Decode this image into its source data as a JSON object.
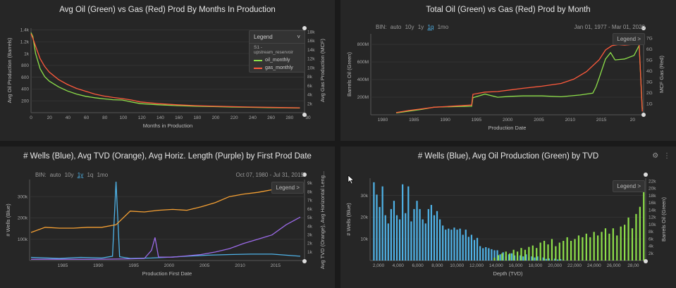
{
  "panels": [
    {
      "id": "p1",
      "title": "Avg Oil (Green) vs Gas (Red) Prod By Months In Production",
      "legend": {
        "header": "Legend",
        "chevron": "˅",
        "group": "S1 - upstream_reservoir",
        "items": [
          {
            "label": "oil_monthly",
            "color": "#8ee04a"
          },
          {
            "label": "gas_monthly",
            "color": "#ff5a3c"
          }
        ]
      }
    },
    {
      "id": "p2",
      "title": "Total Oil (Green) vs Gas (Red) Prod by Month",
      "bin": {
        "label": "BIN:",
        "options": [
          "auto",
          "10y",
          "1y",
          "1q",
          "1mo"
        ],
        "active": "1q"
      },
      "range": "Jan 01, 1977 - Mar 01, 2020",
      "legend_button": "Legend >"
    },
    {
      "id": "p3",
      "title": "# Wells (Blue), Avg TVD (Orange), Avg Horiz. Length (Purple) by First Prod Date",
      "bin": {
        "label": "BIN:",
        "options": [
          "auto",
          "10y",
          "1y",
          "1q",
          "1mo"
        ],
        "active": "1y"
      },
      "range": "Oct 07, 1980 - Jul 31, 2019",
      "legend_button": "Legend >"
    },
    {
      "id": "p4",
      "title": "# Wells (Blue), Avg Oil Production (Green) by TVD",
      "legend_button": "Legend >",
      "icons": {
        "settings": "gear-icon",
        "menu": "kebab-menu-icon"
      }
    }
  ],
  "chart_data": [
    {
      "type": "line",
      "title": "Avg Oil (Green) vs Gas (Red) Prod By Months In Production",
      "xlabel": "Months in Production",
      "ylabel": "Avg Oil Production (Barrels)",
      "y2label": "Avg Gas Production (MCF)",
      "xlim": [
        0,
        300
      ],
      "ylim": [
        0,
        1500
      ],
      "y2lim": [
        0,
        18000
      ],
      "xticks": [
        "0",
        "20",
        "40",
        "60",
        "80",
        "100",
        "120",
        "140",
        "160",
        "180",
        "200",
        "220",
        "240",
        "260",
        "280",
        "30"
      ],
      "yticks": [
        "200",
        "400",
        "600",
        "800",
        "1k",
        "1.2k",
        "1.4k"
      ],
      "y2ticks": [
        "2k",
        "4k",
        "6k",
        "8k",
        "10k",
        "12k",
        "14k",
        "16k",
        "18k"
      ],
      "grid": true,
      "legend_position": "top-right",
      "series": [
        {
          "name": "oil_monthly",
          "axis": "left",
          "color": "#8ee04a",
          "x": [
            0,
            2,
            5,
            10,
            15,
            20,
            30,
            40,
            50,
            60,
            70,
            80,
            90,
            100,
            110,
            120,
            140,
            160,
            180,
            200,
            220,
            240,
            260,
            280,
            295
          ],
          "y": [
            1420,
            1350,
            1050,
            780,
            640,
            560,
            460,
            385,
            330,
            290,
            265,
            245,
            230,
            225,
            190,
            160,
            140,
            125,
            115,
            108,
            100,
            95,
            90,
            86,
            82
          ]
        },
        {
          "name": "gas_monthly",
          "axis": "left",
          "color": "#ff5a3c",
          "x": [
            0,
            2,
            5,
            10,
            15,
            20,
            30,
            40,
            50,
            60,
            70,
            80,
            90,
            100,
            110,
            120,
            140,
            160,
            180,
            200,
            220,
            240,
            260,
            280,
            295
          ],
          "y": [
            1400,
            1320,
            1180,
            960,
            820,
            720,
            590,
            500,
            430,
            380,
            330,
            295,
            270,
            250,
            225,
            190,
            160,
            140,
            125,
            115,
            108,
            100,
            95,
            90,
            86
          ]
        }
      ]
    },
    {
      "type": "line",
      "title": "Total Oil (Green) vs Gas (Red) Prod by Month",
      "xlabel": "Production Date",
      "ylabel": "Barrels Oil (Green)",
      "y2label": "MCF Gas (Red)",
      "xlim": [
        1977,
        2020
      ],
      "ylim": [
        0,
        900
      ],
      "y2lim": [
        0,
        7.5
      ],
      "xticks": [
        "1980",
        "1985",
        "1990",
        "1995",
        "2000",
        "2005",
        "2010",
        "2015",
        "20"
      ],
      "yticks": [
        "200M",
        "400M",
        "600M",
        "800M"
      ],
      "y2ticks": [
        "1G",
        "2G",
        "3G",
        "4G",
        "5G",
        "6G",
        "7G"
      ],
      "grid": true,
      "series": [
        {
          "name": "oil",
          "axis": "left",
          "color": "#8ee04a",
          "x": [
            1981,
            1983,
            1985,
            1987,
            1990,
            1992.9,
            1993.1,
            1995,
            1997,
            1999,
            2001,
            2004,
            2007,
            2010,
            2012,
            2012.5,
            2013,
            2014,
            2014.8,
            2015.5,
            2017,
            2018.5,
            2019.3,
            2019.8
          ],
          "y": [
            20,
            40,
            60,
            85,
            90,
            95,
            190,
            230,
            195,
            205,
            210,
            210,
            200,
            220,
            240,
            310,
            410,
            620,
            690,
            610,
            620,
            660,
            770,
            60
          ]
        },
        {
          "name": "gas",
          "axis": "right",
          "color": "#ff5a3c",
          "x": [
            1981,
            1983,
            1985,
            1987,
            1990,
            1992.9,
            1993.1,
            1995,
            1997,
            1999,
            2001,
            2004,
            2007,
            2009,
            2011,
            2013,
            2014,
            2015,
            2016,
            2017,
            2018,
            2019.3,
            2019.8
          ],
          "y": [
            0.2,
            0.4,
            0.55,
            0.7,
            0.8,
            0.9,
            1.9,
            2.1,
            2.15,
            2.3,
            2.45,
            2.65,
            2.9,
            3.3,
            4.0,
            5.1,
            6.0,
            6.4,
            6.5,
            6.45,
            6.5,
            6.6,
            0.3
          ]
        }
      ]
    },
    {
      "type": "line",
      "title": "# Wells (Blue), Avg TVD (Orange), Avg Horiz. Length (Purple) by First Prod Date",
      "xlabel": "Production First Date",
      "ylabel": "# Wells (Blue)",
      "y2label": "Avg TVD (Orange), Avg Horizontal Leng...",
      "xlim": [
        1980.8,
        2019.6
      ],
      "ylim": [
        0,
        380
      ],
      "y2lim": [
        0,
        9500
      ],
      "xticks": [
        "1985",
        "1990",
        "1995",
        "2000",
        "2005",
        "2010",
        "2015"
      ],
      "yticks": [
        "100k",
        "200k",
        "300k"
      ],
      "y2ticks": [
        "1k",
        "2k",
        "3k",
        "4k",
        "5k",
        "6k",
        "7k",
        "8k",
        "9k"
      ],
      "grid": true,
      "series": [
        {
          "name": "wells",
          "axis": "left",
          "color": "#4fb3e8",
          "x": [
            1981,
            1985,
            1988,
            1991,
            1992.5,
            1993,
            1993.5,
            1995,
            1998,
            2000,
            2003,
            2006,
            2009,
            2012,
            2015,
            2017,
            2019
          ],
          "y": [
            15,
            10,
            15,
            12,
            20,
            370,
            18,
            10,
            12,
            15,
            20,
            25,
            28,
            30,
            30,
            25,
            20
          ]
        },
        {
          "name": "tvd",
          "axis": "right",
          "color": "#f5a033",
          "x": [
            1981,
            1983,
            1985,
            1987,
            1989,
            1991,
            1993,
            1995,
            1997,
            1999,
            2001,
            2003,
            2005,
            2007,
            2009,
            2011,
            2013,
            2015,
            2017,
            2019
          ],
          "y": [
            3300,
            3900,
            3800,
            3800,
            3900,
            3900,
            4200,
            5800,
            5700,
            5900,
            6000,
            5900,
            6300,
            6800,
            7500,
            7800,
            8000,
            8300,
            8300,
            8200
          ]
        },
        {
          "name": "horizontal_length",
          "axis": "right",
          "color": "#9b6ae8",
          "x": [
            1981,
            1990,
            1995,
            1997,
            1998,
            1998.5,
            1999,
            2001,
            2005,
            2007,
            2009,
            2011,
            2013,
            2015,
            2017,
            2019
          ],
          "y": [
            150,
            150,
            200,
            250,
            1200,
            2700,
            400,
            400,
            700,
            1000,
            1400,
            2000,
            2500,
            3000,
            4200,
            5100
          ]
        }
      ]
    },
    {
      "type": "bar",
      "title": "# Wells (Blue), Avg Oil Production (Green) by TVD",
      "xlabel": "Depth (TVD)",
      "ylabel": "# Wells (Blue)",
      "y2label": "Barrels Oil (Green)",
      "xlim": [
        0,
        28800
      ],
      "ylim": [
        0,
        40000
      ],
      "y2lim": [
        0,
        23000
      ],
      "xticks": [
        "2,000",
        "4,000",
        "6,000",
        "8,000",
        "10,000",
        "12,000",
        "14,000",
        "16,000",
        "18,000",
        "20,000",
        "22,000",
        "24,000",
        "26,000",
        "28,00"
      ],
      "yticks": [
        "10k",
        "20k",
        "30k"
      ],
      "y2ticks": [
        "2k",
        "4k",
        "6k",
        "8k",
        "10k",
        "12k",
        "14k",
        "16k",
        "18k",
        "20k",
        "22k"
      ],
      "grid": true,
      "series": [
        {
          "name": "wells",
          "axis": "left",
          "color": "#4fb3e8",
          "x": [
            400,
            700,
            1000,
            1300,
            1600,
            1900,
            2200,
            2500,
            2800,
            3100,
            3400,
            3700,
            4000,
            4300,
            4600,
            4900,
            5200,
            5500,
            5800,
            6100,
            6400,
            6700,
            7000,
            7300,
            7600,
            7900,
            8200,
            8500,
            8800,
            9100,
            9400,
            9700,
            10000,
            10300,
            10600,
            10900,
            11200,
            11500,
            11800,
            12100,
            12400,
            12700,
            13000,
            13300,
            13600,
            13900,
            14200,
            14500,
            14800,
            15100,
            15400,
            15700,
            16000,
            16300,
            16600,
            16900,
            17200,
            17500,
            17800,
            18100,
            18400,
            18700,
            19000,
            19300,
            19600,
            19900,
            20200
          ],
          "y": [
            38000,
            32000,
            26000,
            36000,
            22000,
            18000,
            25000,
            29000,
            22000,
            20000,
            37000,
            23000,
            36000,
            19000,
            25000,
            29000,
            25000,
            20000,
            18000,
            25000,
            27000,
            22000,
            24000,
            20000,
            17000,
            15000,
            15500,
            15000,
            16000,
            15000,
            15500,
            12500,
            15000,
            11500,
            12500,
            10000,
            11000,
            7000,
            6000,
            6500,
            6000,
            5500,
            5000,
            5000,
            3000,
            4000,
            2000,
            3000,
            3500,
            2500,
            2000,
            2500,
            2000,
            3000,
            1500,
            2000,
            1500,
            2000,
            1000,
            1500,
            800,
            1000,
            600,
            900,
            500,
            700,
            400
          ]
        },
        {
          "name": "oil",
          "axis": "right",
          "color": "#8ee04a",
          "x": [
            13000,
            13400,
            13800,
            14200,
            14600,
            15000,
            15400,
            15800,
            16200,
            16600,
            17000,
            17400,
            17800,
            18200,
            18600,
            19000,
            19400,
            19800,
            20200,
            20600,
            21000,
            21400,
            21800,
            22200,
            22600,
            23000,
            23400,
            23800,
            24200,
            24600,
            25000,
            25400,
            25800,
            26200,
            26600,
            27000,
            27400,
            27800,
            28200,
            28600
          ],
          "y": [
            800,
            1500,
            2000,
            2500,
            2000,
            3000,
            2500,
            3500,
            3000,
            3800,
            4200,
            3500,
            5000,
            5500,
            4500,
            6000,
            4000,
            5000,
            5500,
            6500,
            5500,
            6000,
            7000,
            6500,
            7500,
            6500,
            8000,
            7000,
            8000,
            9000,
            7500,
            9000,
            7000,
            9500,
            10000,
            12000,
            9000,
            13000,
            15000,
            21000
          ]
        }
      ]
    }
  ]
}
